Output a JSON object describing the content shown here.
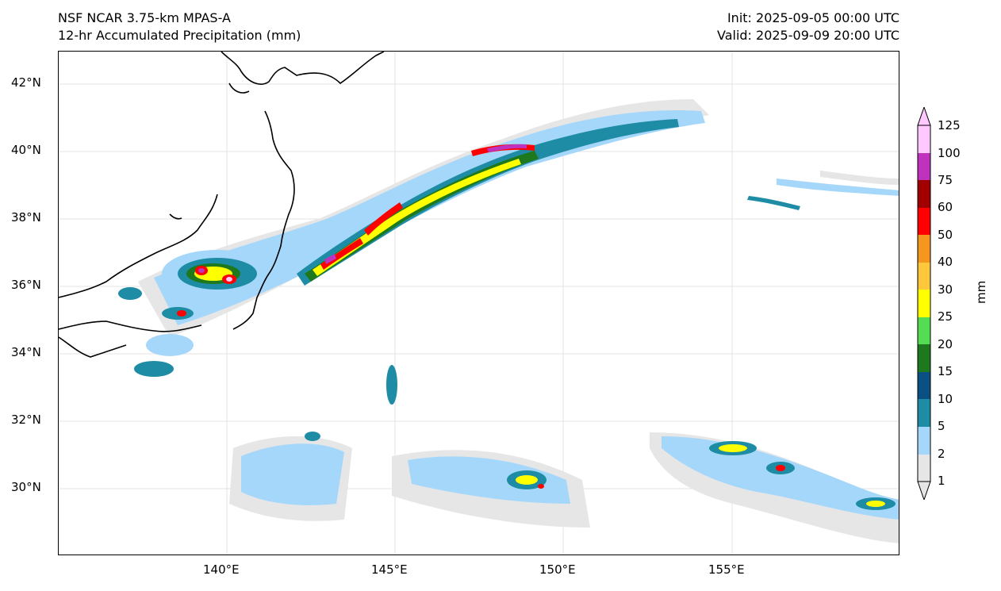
{
  "header": {
    "model": "NSF NCAR 3.75-km MPAS-A",
    "field": "12-hr Accumulated Precipitation (mm)",
    "init": "Init: 2025-09-05 00:00 UTC",
    "valid": "Valid: 2025-09-09 20:00 UTC"
  },
  "map": {
    "lat_labels": [
      "42°N",
      "40°N",
      "38°N",
      "36°N",
      "34°N",
      "32°N",
      "30°N"
    ],
    "lon_labels": [
      "140°E",
      "145°E",
      "150°E",
      "155°E"
    ],
    "lat_values": [
      42,
      40,
      38,
      36,
      34,
      32,
      30
    ],
    "lon_values": [
      140,
      145,
      150,
      155
    ],
    "extent": {
      "lon": [
        134.9,
        160.0
      ],
      "lat": [
        28.0,
        43.0
      ]
    }
  },
  "colorbar": {
    "unit": "mm",
    "levels": [
      "1",
      "2",
      "5",
      "10",
      "15",
      "20",
      "25",
      "30",
      "40",
      "50",
      "60",
      "75",
      "100",
      "125"
    ],
    "colors": [
      "#e6e6e6",
      "#a5d7fa",
      "#1e8ca5",
      "#0a5082",
      "#1e781e",
      "#55dc55",
      "#ffff00",
      "#ffc83c",
      "#f5961e",
      "#ff0000",
      "#a00000",
      "#be32be",
      "#ffc8ff"
    ],
    "extend": "both"
  }
}
